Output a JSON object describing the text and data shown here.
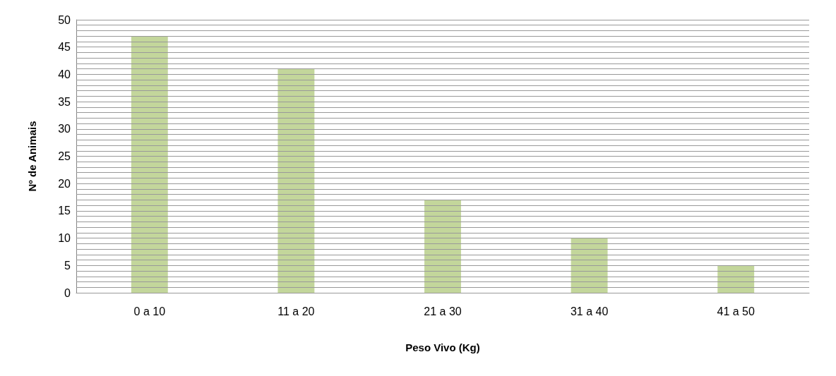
{
  "chart_data": {
    "type": "bar",
    "xlabel": "Peso Vivo (Kg)",
    "ylabel": "Nº de Animais",
    "categories": [
      "0 a 10",
      "11 a 20",
      "21 a 30",
      "31 a 40",
      "41 a 50"
    ],
    "series": [
      {
        "color": "#c3d69b",
        "values": [
          47,
          41,
          17,
          10,
          5
        ]
      }
    ],
    "ylim": [
      0,
      50
    ],
    "yticks": [
      0,
      {
        "value": 1,
        "label": null
      },
      {
        "value": 2,
        "label": null
      },
      {
        "value": 3,
        "label": null
      },
      {
        "value": 4,
        "label": null
      },
      5,
      {
        "value": 6,
        "label": null
      },
      {
        "value": 7,
        "label": null
      },
      {
        "value": 8,
        "label": null
      },
      {
        "value": 9,
        "label": null
      },
      10,
      {
        "value": 11,
        "label": null
      },
      {
        "value": 12,
        "label": null
      },
      {
        "value": 13,
        "label": null
      },
      {
        "value": 14,
        "label": null
      },
      15,
      {
        "value": 16,
        "label": null
      },
      {
        "value": 17,
        "label": null
      },
      {
        "value": 18,
        "label": null
      },
      {
        "value": 19,
        "label": null
      },
      20,
      {
        "value": 21,
        "label": null
      },
      {
        "value": 22,
        "label": null
      },
      {
        "value": 23,
        "label": null
      },
      {
        "value": 24,
        "label": null
      },
      25,
      {
        "value": 26,
        "label": null
      },
      {
        "value": 27,
        "label": null
      },
      {
        "value": 28,
        "label": null
      },
      {
        "value": 29,
        "label": null
      },
      30,
      {
        "value": 31,
        "label": null
      },
      {
        "value": 32,
        "label": null
      },
      {
        "value": 33,
        "label": null
      },
      {
        "value": 34,
        "label": null
      },
      35,
      {
        "value": 36,
        "label": null
      },
      {
        "value": 37,
        "label": null
      },
      {
        "value": 38,
        "label": null
      },
      {
        "value": 39,
        "label": null
      },
      40,
      {
        "value": 41,
        "label": null
      },
      {
        "value": 42,
        "label": null
      },
      {
        "value": 43,
        "label": null
      },
      {
        "value": 44,
        "label": null
      },
      45,
      {
        "value": 46,
        "label": null
      },
      {
        "value": 47,
        "label": null
      },
      {
        "value": 48,
        "label": null
      },
      {
        "value": 49,
        "label": null
      },
      50
    ],
    "grid": true
  }
}
